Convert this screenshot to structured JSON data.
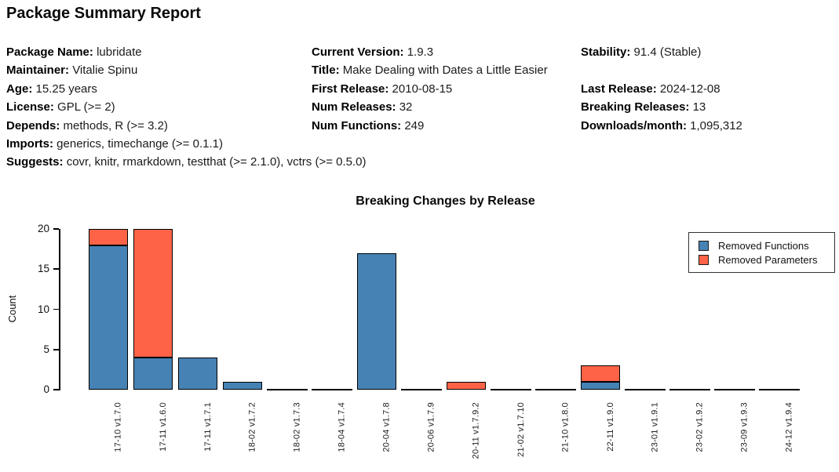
{
  "header": {
    "title": "Package Summary Report"
  },
  "info": {
    "columns": [
      {
        "rows": [
          {
            "label": "Package Name",
            "value": "lubridate"
          },
          {
            "label": "Maintainer",
            "value": "Vitalie Spinu"
          },
          {
            "label": "Age",
            "value": "15.25 years"
          },
          {
            "label": "License",
            "value": "GPL (>= 2)"
          },
          {
            "label": "Depends",
            "value": "methods, R (>= 3.2)"
          },
          {
            "label": "Imports",
            "value": "generics, timechange (>= 0.1.1)"
          },
          {
            "label": "Suggests",
            "value": "covr, knitr, rmarkdown, testthat (>= 2.1.0), vctrs (>= 0.5.0)"
          }
        ]
      },
      {
        "rows": [
          {
            "label": "Current Version",
            "value": "1.9.3"
          },
          {
            "label": "Title",
            "value": "Make Dealing with Dates a Little Easier"
          },
          {
            "label": "First Release",
            "value": "2010-08-15"
          },
          {
            "label": "Num Releases",
            "value": "32"
          },
          {
            "label": "Num Functions",
            "value": "249"
          }
        ]
      },
      {
        "rows": [
          {
            "label": "Stability",
            "value": "91.4 (Stable)"
          },
          null,
          {
            "label": "Last Release",
            "value": "2024-12-08"
          },
          {
            "label": "Breaking Releases",
            "value": "13"
          },
          {
            "label": "Downloads/month",
            "value": "1,095,312"
          }
        ]
      }
    ]
  },
  "chart_data": {
    "type": "bar",
    "stacked": true,
    "title": "Breaking Changes by Release",
    "xlabel": "",
    "ylabel": "Count",
    "categories": [
      "17-10 v1.7.0",
      "17-11 v1.6.0",
      "17-11 v1.7.1",
      "18-02 v1.7.2",
      "18-02 v1.7.3",
      "18-04 v1.7.4",
      "20-04 v1.7.8",
      "20-06 v1.7.9",
      "20-11 v1.7.9.2",
      "21-02 v1.7.10",
      "21-10 v1.8.0",
      "22-11 v1.9.0",
      "23-01 v1.9.1",
      "23-02 v1.9.2",
      "23-09 v1.9.3",
      "24-12 v1.9.4"
    ],
    "series": [
      {
        "name": "Removed Functions",
        "color": "#4682B4",
        "values": [
          18,
          4,
          4,
          1,
          0,
          0,
          17,
          0,
          0,
          0,
          0,
          1,
          0,
          0,
          0,
          0
        ]
      },
      {
        "name": "Removed Parameters",
        "color": "#FF6347",
        "values": [
          2,
          16,
          0,
          0,
          0,
          0,
          0,
          0,
          1,
          0,
          0,
          2,
          0,
          0,
          0,
          0
        ]
      }
    ],
    "ylim": [
      0,
      20
    ],
    "yticks": [
      0,
      5,
      10,
      15,
      20
    ],
    "grid": false,
    "legend_position": "upper right"
  }
}
